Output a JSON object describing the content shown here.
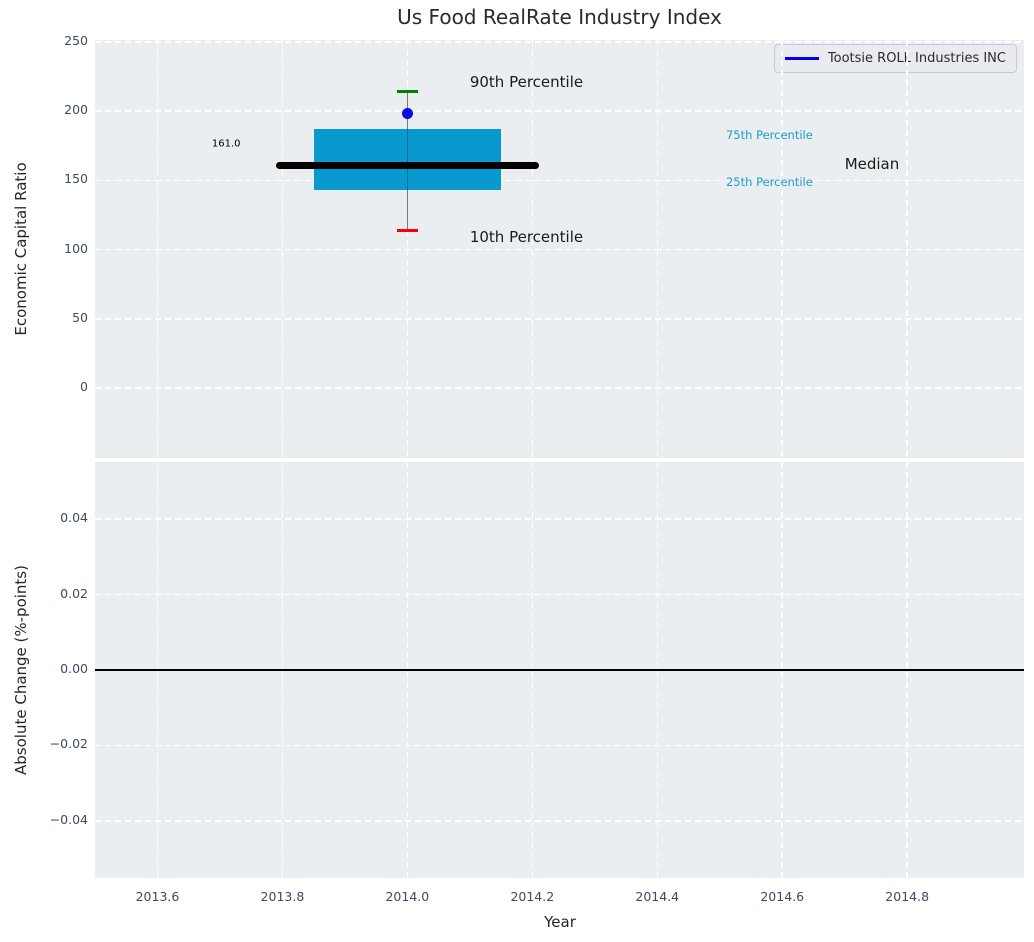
{
  "title": "Us Food RealRate Industry Index",
  "colors": {
    "plot_background": "#eaeef0",
    "grid": "#ffffff",
    "tick_label": "#3c4b60",
    "axis_label": "#262626",
    "box": "#0899ce",
    "median_line": "#000000",
    "p90_cap": "#008000",
    "p10_cap": "#ff0000",
    "whisker": "#7a7a7a",
    "company_marker": "#0b0be8",
    "legend_line": "#0000e0",
    "percentile_label": "#1d9bca"
  },
  "chart_data": [
    {
      "type": "boxplot",
      "title": "Us Food RealRate Industry Index",
      "ylabel": "Economic Capital Ratio",
      "xlim": [
        2013.5,
        2014.987
      ],
      "ylim": [
        -50.6,
        251.4
      ],
      "grid": true,
      "xticks": [
        2013.6,
        2013.8,
        2014.0,
        2014.2,
        2014.4,
        2014.6,
        2014.8
      ],
      "xtick_labels": [],
      "yticks": [
        0,
        50,
        100,
        150,
        200,
        250
      ],
      "ytick_labels": [
        "0",
        "50",
        "100",
        "150",
        "200",
        "250"
      ],
      "box": {
        "x_center": 2014.0,
        "x_left": 2013.85,
        "x_right": 2014.15,
        "p10": 114,
        "p25": 143,
        "median": 161.0,
        "p75": 187,
        "p90": 214,
        "median_x_left": 2013.79,
        "median_x_right": 2014.21,
        "cap_half_width": 0.017
      },
      "company_point": {
        "label": "Tootsie ROLL Industries INC",
        "x": 2014.0,
        "y": 198
      },
      "annotations": [
        {
          "text": "161.0",
          "x": 2013.71,
          "y": 176,
          "size": 10,
          "color": "#000000",
          "align": "center"
        },
        {
          "text": "90th Percentile",
          "x": 2014.1,
          "y": 221,
          "size": 15,
          "color": "#1a1a1a",
          "align": "left"
        },
        {
          "text": "10th Percentile",
          "x": 2014.1,
          "y": 109,
          "size": 15,
          "color": "#1a1a1a",
          "align": "left"
        },
        {
          "text": "75th Percentile",
          "x": 2014.51,
          "y": 183,
          "size": 11.5,
          "color": "#1d9bca",
          "align": "left"
        },
        {
          "text": "25th Percentile",
          "x": 2014.51,
          "y": 149,
          "size": 11.5,
          "color": "#1d9bca",
          "align": "left"
        },
        {
          "text": "Median",
          "x": 2014.7,
          "y": 162,
          "size": 15,
          "color": "#1a1a1a",
          "align": "left"
        }
      ],
      "legend": {
        "label": "Tootsie ROLL Industries INC",
        "position": "upper right"
      }
    },
    {
      "type": "line",
      "ylabel": "Absolute Change (%-points)",
      "xlabel": "Year",
      "xlim": [
        2013.5,
        2014.987
      ],
      "ylim": [
        -0.0551,
        0.0551
      ],
      "grid": true,
      "xticks": [
        2013.6,
        2013.8,
        2014.0,
        2014.2,
        2014.4,
        2014.6,
        2014.8
      ],
      "xtick_labels": [
        "2013.6",
        "2013.8",
        "2014.0",
        "2014.2",
        "2014.4",
        "2014.6",
        "2014.8"
      ],
      "yticks": [
        -0.04,
        -0.02,
        0.0,
        0.02,
        0.04
      ],
      "ytick_labels": [
        "−0.04",
        "−0.02",
        "0.00",
        "0.02",
        "0.04"
      ],
      "zero_line": {
        "y": 0.0,
        "color": "#000000"
      },
      "series": []
    }
  ]
}
